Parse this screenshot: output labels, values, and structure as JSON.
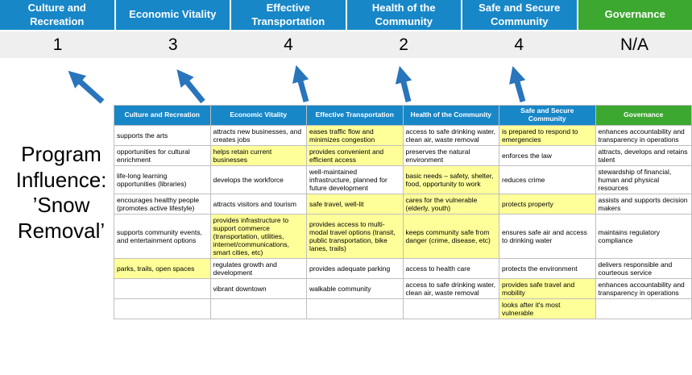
{
  "slide": {
    "program_label": "Program Influence: ’Snow Removal’"
  },
  "pillars": [
    {
      "name": "Culture and Recreation",
      "score": "1",
      "color": "blue"
    },
    {
      "name": "Economic Vitality",
      "score": "3",
      "color": "blue"
    },
    {
      "name": "Effective Transportation",
      "score": "4",
      "color": "blue"
    },
    {
      "name": "Health of the Community",
      "score": "2",
      "color": "blue"
    },
    {
      "name": "Safe and Secure Community",
      "score": "4",
      "color": "blue"
    },
    {
      "name": "Governance",
      "score": "N/A",
      "color": "green"
    }
  ],
  "colors": {
    "pillar_blue": "#1787c8",
    "pillar_green": "#3da830",
    "highlight_yellow": "#ffff99",
    "arrow_blue": "#2875bc",
    "score_band_gray": "#efefef"
  },
  "table": {
    "columns": [
      {
        "header": "Culture and Recreation",
        "color": "blue"
      },
      {
        "header": "Economic Vitality",
        "color": "blue"
      },
      {
        "header": "Effective Transportation",
        "color": "blue"
      },
      {
        "header": "Health of the Community",
        "color": "blue"
      },
      {
        "header": "Safe and Secure Community",
        "color": "blue"
      },
      {
        "header": "Governance",
        "color": "green"
      }
    ],
    "rows": [
      [
        {
          "text": "supports the arts",
          "highlight": false
        },
        {
          "text": "attracts new businesses, and creates jobs",
          "highlight": false
        },
        {
          "text": "eases traffic flow and minimizes congestion",
          "highlight": true
        },
        {
          "text": "access to safe drinking water, clean air, waste removal",
          "highlight": false
        },
        {
          "text": "is prepared to respond to emergencies",
          "highlight": true
        },
        {
          "text": "enhances accountability and transparency in operations",
          "highlight": false
        }
      ],
      [
        {
          "text": "opportunities for cultural enrichment",
          "highlight": false
        },
        {
          "text": "helps retain current businesses",
          "highlight": true
        },
        {
          "text": "provides convenient and efficient access",
          "highlight": true
        },
        {
          "text": "preserves the natural environment",
          "highlight": false
        },
        {
          "text": "enforces the law",
          "highlight": false
        },
        {
          "text": "attracts, develops and retains talent",
          "highlight": false
        }
      ],
      [
        {
          "text": "life-long learning opportunities (libraries)",
          "highlight": false
        },
        {
          "text": "develops the workforce",
          "highlight": false
        },
        {
          "text": "well-maintained infrastructure, planned for future development",
          "highlight": false
        },
        {
          "text": "basic needs – safety, shelter, food, opportunity to work",
          "highlight": true
        },
        {
          "text": "reduces crime",
          "highlight": false
        },
        {
          "text": "stewardship of financial, human and physical resources",
          "highlight": false
        }
      ],
      [
        {
          "text": "encourages healthy people (promotes active lifestyle)",
          "highlight": false
        },
        {
          "text": "attracts visitors and tourism",
          "highlight": false
        },
        {
          "text": "safe travel, well-lit",
          "highlight": true
        },
        {
          "text": "cares for the vulnerable (elderly, youth)",
          "highlight": true
        },
        {
          "text": "protects property",
          "highlight": true
        },
        {
          "text": "assists and supports decision makers",
          "highlight": false
        }
      ],
      [
        {
          "text": "supports community events, and entertainment options",
          "highlight": false
        },
        {
          "text": "provides infrastructure to support commerce (transportation, utilities, internet/communications, smart cities, etc)",
          "highlight": true
        },
        {
          "text": "provides access to multi-modal travel options (transit, public transportation, bike lanes, trails)",
          "highlight": true
        },
        {
          "text": "keeps community safe from danger (crime, disease, etc)",
          "highlight": true
        },
        {
          "text": "ensures safe air and access to drinking water",
          "highlight": false
        },
        {
          "text": "maintains regulatory compliance",
          "highlight": false
        }
      ],
      [
        {
          "text": "parks, trails, open spaces",
          "highlight": true
        },
        {
          "text": "regulates growth and development",
          "highlight": false
        },
        {
          "text": "provides adequate parking",
          "highlight": false
        },
        {
          "text": "access to health care",
          "highlight": false
        },
        {
          "text": "protects the environment",
          "highlight": false
        },
        {
          "text": "delivers responsible and courteous service",
          "highlight": false
        }
      ],
      [
        {
          "text": "",
          "highlight": false
        },
        {
          "text": "vibrant downtown",
          "highlight": false
        },
        {
          "text": "walkable community",
          "highlight": false
        },
        {
          "text": "access to safe drinking water, clean air, waste removal",
          "highlight": false
        },
        {
          "text": "provides safe travel and mobility",
          "highlight": true
        },
        {
          "text": "enhances accountability and transparency in operations",
          "highlight": false
        }
      ],
      [
        {
          "text": "",
          "highlight": false
        },
        {
          "text": "",
          "highlight": false
        },
        {
          "text": "",
          "highlight": false
        },
        {
          "text": "",
          "highlight": false
        },
        {
          "text": "looks after it's most vulnerable",
          "highlight": true
        },
        {
          "text": "",
          "highlight": false
        }
      ]
    ]
  }
}
